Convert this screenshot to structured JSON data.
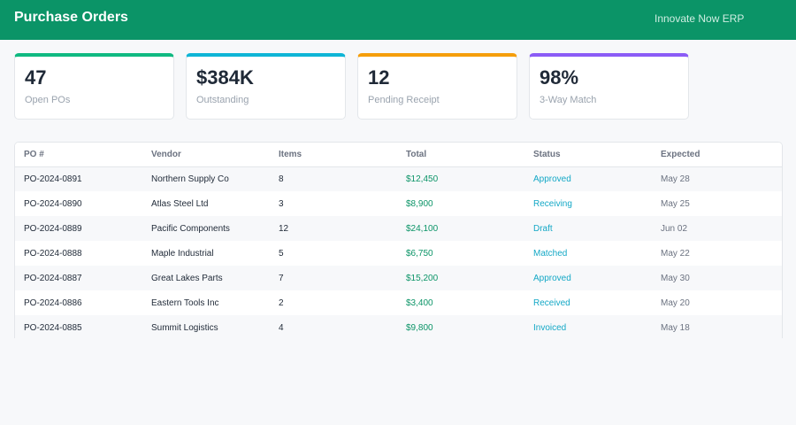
{
  "header": {
    "title": "Purchase Orders",
    "brand": "Innovate Now ERP"
  },
  "stats": [
    {
      "value": "47",
      "label": "Open POs",
      "accent": "#10b981"
    },
    {
      "value": "$384K",
      "label": "Outstanding",
      "accent": "#0fb5d6"
    },
    {
      "value": "12",
      "label": "Pending Receipt",
      "accent": "#f59e0b"
    },
    {
      "value": "98%",
      "label": "3-Way Match",
      "accent": "#8b5cf6"
    }
  ],
  "table": {
    "columns": [
      "PO #",
      "Vendor",
      "Items",
      "Total",
      "Status",
      "Expected"
    ],
    "rows": [
      {
        "po": "PO-2024-0891",
        "vendor": "Northern Supply Co",
        "items": "8",
        "total": "$12,450",
        "status": "Approved",
        "expected": "May 28"
      },
      {
        "po": "PO-2024-0890",
        "vendor": "Atlas Steel Ltd",
        "items": "3",
        "total": "$8,900",
        "status": "Receiving",
        "expected": "May 25"
      },
      {
        "po": "PO-2024-0889",
        "vendor": "Pacific Components",
        "items": "12",
        "total": "$24,100",
        "status": "Draft",
        "expected": "Jun 02"
      },
      {
        "po": "PO-2024-0888",
        "vendor": "Maple Industrial",
        "items": "5",
        "total": "$6,750",
        "status": "Matched",
        "expected": "May 22"
      },
      {
        "po": "PO-2024-0887",
        "vendor": "Great Lakes Parts",
        "items": "7",
        "total": "$15,200",
        "status": "Approved",
        "expected": "May 30"
      },
      {
        "po": "PO-2024-0886",
        "vendor": "Eastern Tools Inc",
        "items": "2",
        "total": "$3,400",
        "status": "Received",
        "expected": "May 20"
      },
      {
        "po": "PO-2024-0885",
        "vendor": "Summit Logistics",
        "items": "4",
        "total": "$9,800",
        "status": "Invoiced",
        "expected": "May 18"
      }
    ]
  },
  "colors": {
    "header_bg": "#0b9467",
    "total_text": "#0b9467",
    "status_text": "#14a8c6"
  }
}
